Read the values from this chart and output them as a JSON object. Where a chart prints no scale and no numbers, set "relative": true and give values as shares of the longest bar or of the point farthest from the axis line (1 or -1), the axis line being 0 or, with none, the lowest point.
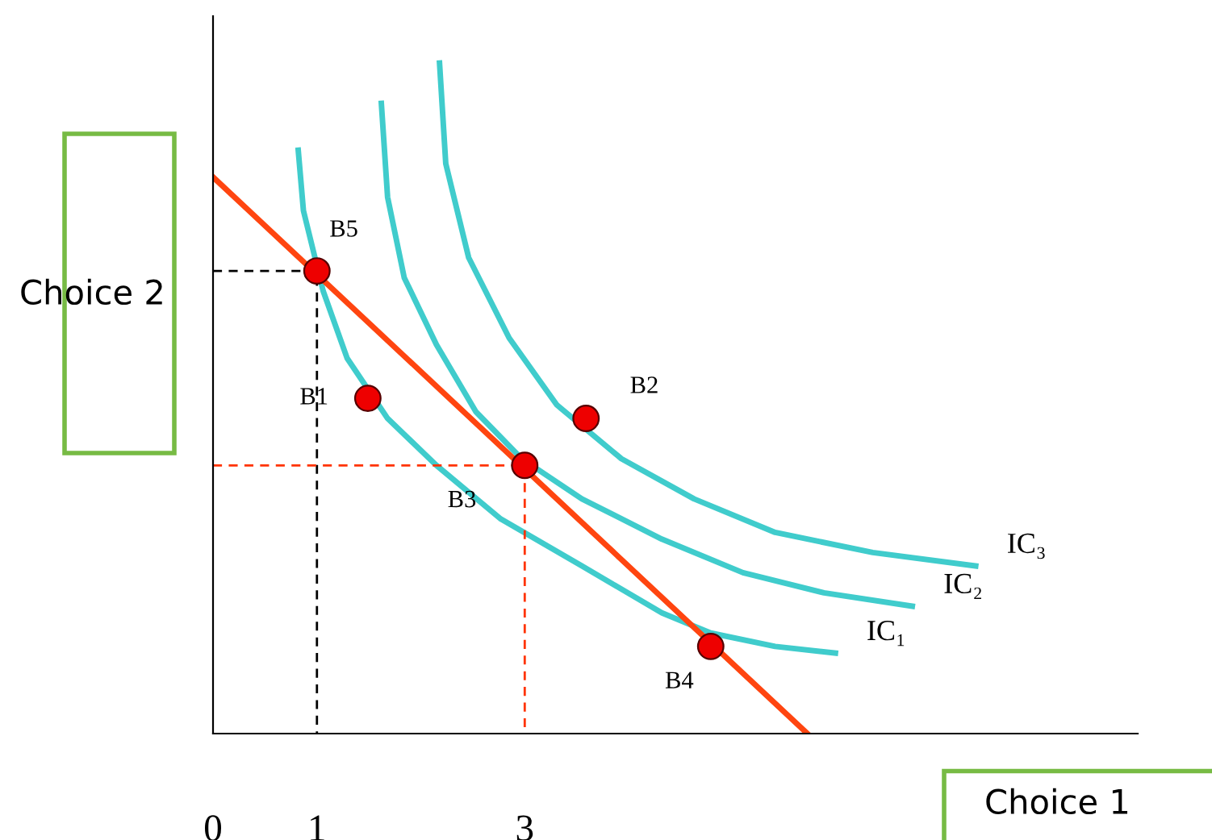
{
  "chart_data": {
    "type": "line",
    "relative": true,
    "xlabel": "Choice 1",
    "ylabel": "Choice 2",
    "xlim": [
      0,
      8.9
    ],
    "xticks": [
      0,
      1,
      3
    ],
    "legend": false,
    "grid": false,
    "series": [
      {
        "name": "IC₁",
        "color": "#40cccc",
        "x": [
          0.82,
          0.87,
          1.06,
          1.29,
          1.68,
          2.15,
          2.77,
          3.55,
          4.32,
          4.79,
          5.41,
          5.99
        ],
        "values": [
          0.87,
          0.78,
          0.66,
          0.56,
          0.47,
          0.4,
          0.32,
          0.25,
          0.18,
          0.15,
          0.13,
          0.12
        ]
      },
      {
        "name": "IC₂",
        "color": "#40cccc",
        "x": [
          1.62,
          1.68,
          1.84,
          2.15,
          2.53,
          2.97,
          3.55,
          4.32,
          5.1,
          5.88,
          6.73
        ],
        "values": [
          0.94,
          0.8,
          0.68,
          0.58,
          0.48,
          0.41,
          0.35,
          0.29,
          0.24,
          0.21,
          0.19
        ]
      },
      {
        "name": "IC₃",
        "color": "#40cccc",
        "x": [
          2.18,
          2.24,
          2.46,
          2.85,
          3.31,
          3.93,
          4.63,
          5.41,
          6.35,
          7.34
        ],
        "values": [
          1.0,
          0.85,
          0.71,
          0.59,
          0.49,
          0.41,
          0.35,
          0.3,
          0.27,
          0.25
        ]
      },
      {
        "color": "#ff4510",
        "x": [
          0,
          5.72
        ],
        "values": [
          0.83,
          0
        ]
      },
      {
        "line_style": "dashed",
        "color": "#000000",
        "x": [
          0,
          1,
          1
        ],
        "values": [
          0.69,
          0.69,
          0
        ]
      },
      {
        "line_style": "dashed",
        "color": "#ff3300",
        "x": [
          0,
          3,
          3
        ],
        "values": [
          0.4,
          0.4,
          0
        ]
      },
      {
        "type": "scatter",
        "marker": "circle",
        "color": "#ee0000",
        "x": [
          1,
          1.49,
          3.59,
          3,
          4.79
        ],
        "values": [
          0.69,
          0.5,
          0.47,
          0.4,
          0.13
        ]
      }
    ],
    "annotations": [
      {
        "text": "B5",
        "x": 1,
        "y": 0.69
      },
      {
        "text": "B1",
        "x": 1.49,
        "y": 0.5
      },
      {
        "text": "B2",
        "x": 3.59,
        "y": 0.47
      },
      {
        "text": "B3",
        "x": 3,
        "y": 0.4
      },
      {
        "text": "B4",
        "x": 4.79,
        "y": 0.13
      }
    ]
  }
}
